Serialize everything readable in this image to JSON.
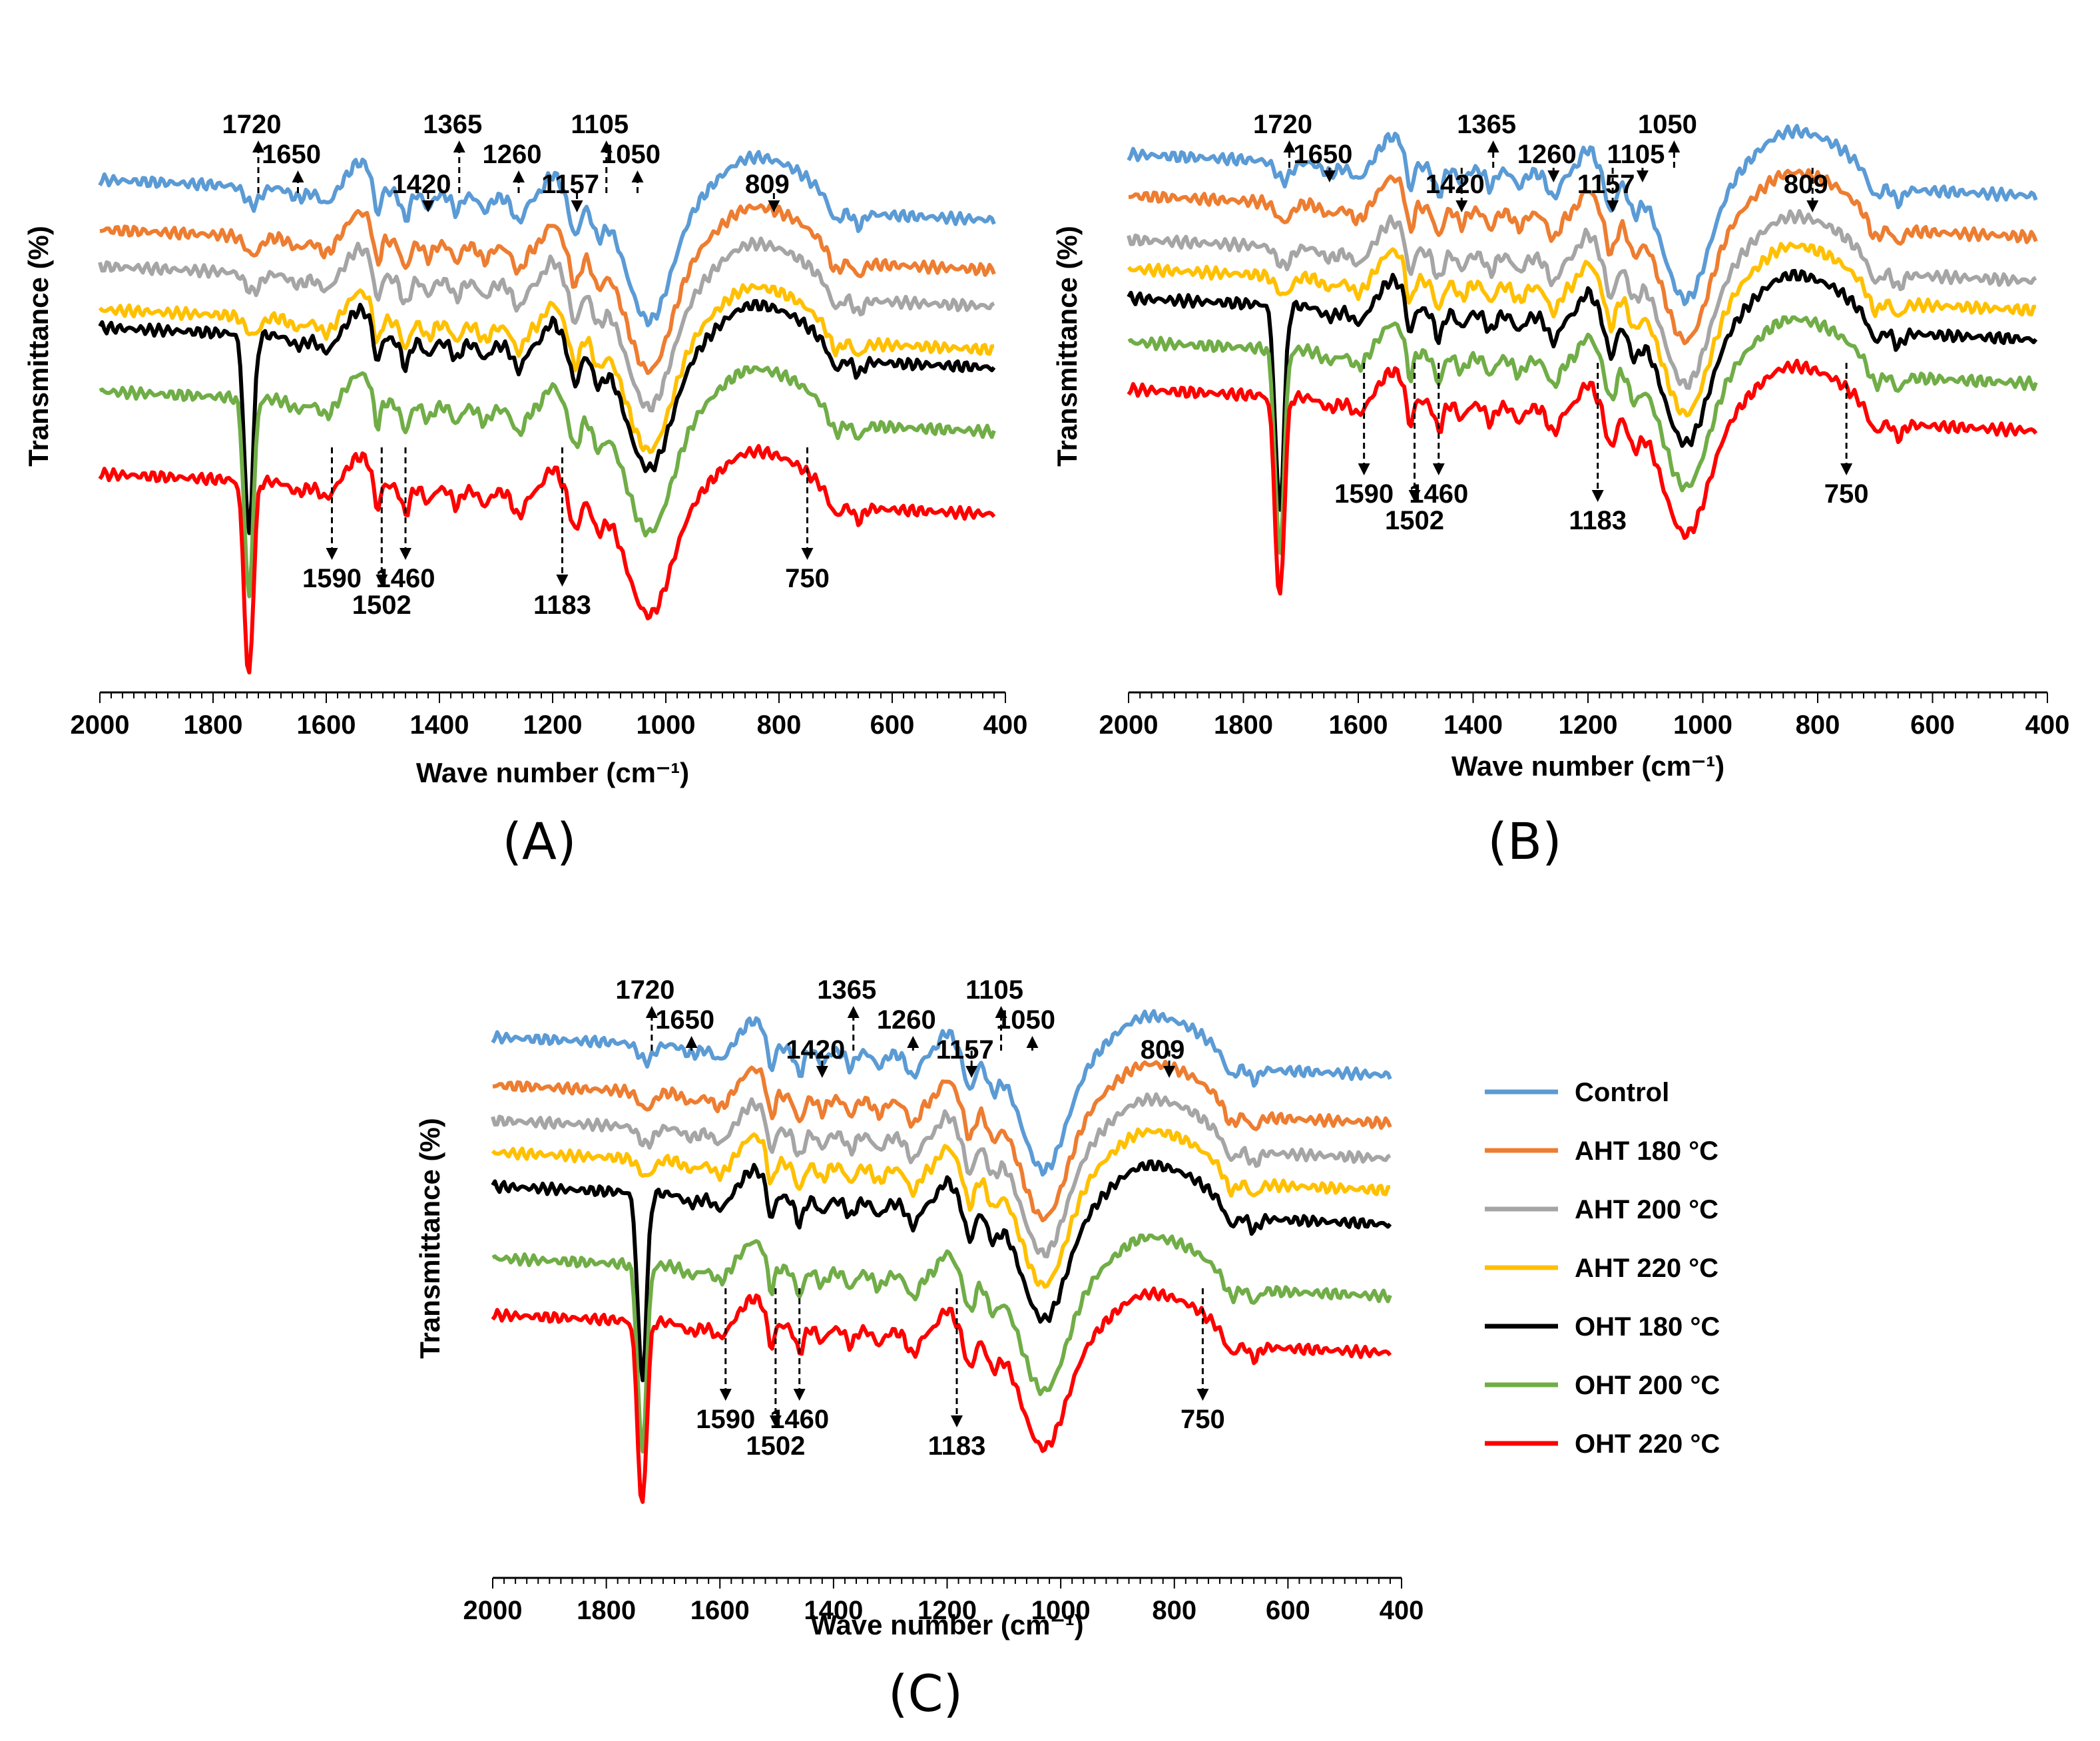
{
  "legend": [
    {
      "name": "Control",
      "color": "#5B9BD5"
    },
    {
      "name": "AHT 180 °C",
      "color": "#ED7D31"
    },
    {
      "name": "AHT 200 °C",
      "color": "#A5A5A5"
    },
    {
      "name": "AHT 220 °C",
      "color": "#FFC000"
    },
    {
      "name": "OHT 180 °C",
      "color": "#000000"
    },
    {
      "name": "OHT 200 °C",
      "color": "#70AD47"
    },
    {
      "name": "OHT 220 °C",
      "color": "#FF0000"
    }
  ],
  "chart_data": [
    {
      "type": "line",
      "panel": "(A)",
      "xlabel": "Wave number (cm⁻¹)",
      "ylabel": "Transmittance (%)",
      "xlim": [
        2000,
        400
      ],
      "x_reversed": true,
      "xticks": [
        2000,
        1800,
        1600,
        1400,
        1200,
        1000,
        800,
        600,
        400
      ],
      "y_ticks_shown": false,
      "grid": false,
      "series_order": [
        "Control",
        "AHT 180 °C",
        "AHT 200 °C",
        "AHT 220 °C",
        "OHT 180 °C",
        "OHT 200 °C",
        "OHT 220 °C"
      ],
      "annotations_up": [
        "1720",
        "1650",
        "1420",
        "1365",
        "1260",
        "1157",
        "1105",
        "1050",
        "809"
      ],
      "annotations_down": [
        "1590",
        "1502",
        "1460",
        "1183",
        "750"
      ]
    },
    {
      "type": "line",
      "panel": "(B)",
      "xlabel": "Wave number (cm⁻¹)",
      "ylabel": "Transmittance (%)",
      "xlim": [
        2000,
        400
      ],
      "x_reversed": true,
      "xticks": [
        2000,
        1800,
        1600,
        1400,
        1200,
        1000,
        800,
        600,
        400
      ],
      "y_ticks_shown": false,
      "grid": false,
      "series_order": [
        "Control",
        "AHT 180 °C",
        "AHT 200 °C",
        "AHT 220 °C",
        "OHT 180 °C",
        "OHT 200 °C",
        "OHT 220 °C"
      ],
      "annotations_up": [
        "1720",
        "1650",
        "1420",
        "1365",
        "1260",
        "1157",
        "1050",
        "1105",
        "809"
      ],
      "annotations_down": [
        "1590",
        "1502",
        "1460",
        "1183",
        "750"
      ]
    },
    {
      "type": "line",
      "panel": "(C)",
      "xlabel": "Wave number (cm⁻¹)",
      "ylabel": "Transmittance (%)",
      "xlim": [
        2000,
        400
      ],
      "x_reversed": true,
      "xticks": [
        2000,
        1800,
        1600,
        1400,
        1200,
        1000,
        800,
        600,
        400
      ],
      "y_ticks_shown": false,
      "grid": false,
      "legend_position": "right",
      "series_order": [
        "Control",
        "AHT 180 °C",
        "AHT 200 °C",
        "AHT 220 °C",
        "OHT 180 °C",
        "OHT 200 °C",
        "OHT 220 °C"
      ],
      "annotations_up": [
        "1720",
        "1650",
        "1420",
        "1365",
        "1260",
        "1157",
        "1105",
        "1050",
        "809"
      ],
      "annotations_down": [
        "1590",
        "1502",
        "1460",
        "1183",
        "750"
      ]
    }
  ]
}
